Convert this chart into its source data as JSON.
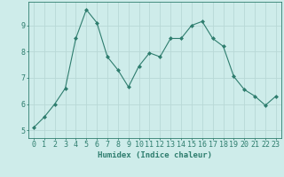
{
  "x": [
    0,
    1,
    2,
    3,
    4,
    5,
    6,
    7,
    8,
    9,
    10,
    11,
    12,
    13,
    14,
    15,
    16,
    17,
    18,
    19,
    20,
    21,
    22,
    23
  ],
  "y": [
    5.1,
    5.5,
    6.0,
    6.6,
    8.5,
    9.6,
    9.1,
    7.8,
    7.3,
    6.65,
    7.45,
    7.95,
    7.8,
    8.5,
    8.5,
    9.0,
    9.15,
    8.5,
    8.2,
    7.05,
    6.55,
    6.3,
    5.95,
    6.3
  ],
  "xlabel": "Humidex (Indice chaleur)",
  "ylabel": "",
  "xlim": [
    -0.5,
    23.5
  ],
  "ylim": [
    4.7,
    9.9
  ],
  "yticks": [
    5,
    6,
    7,
    8,
    9
  ],
  "xticks": [
    0,
    1,
    2,
    3,
    4,
    5,
    6,
    7,
    8,
    9,
    10,
    11,
    12,
    13,
    14,
    15,
    16,
    17,
    18,
    19,
    20,
    21,
    22,
    23
  ],
  "line_color": "#2e7d6e",
  "marker": "D",
  "marker_size": 2.0,
  "bg_color": "#ceecea",
  "grid_color": "#b8d8d6",
  "axis_color": "#2e7d6e",
  "label_fontsize": 6.5,
  "tick_fontsize": 6.0
}
